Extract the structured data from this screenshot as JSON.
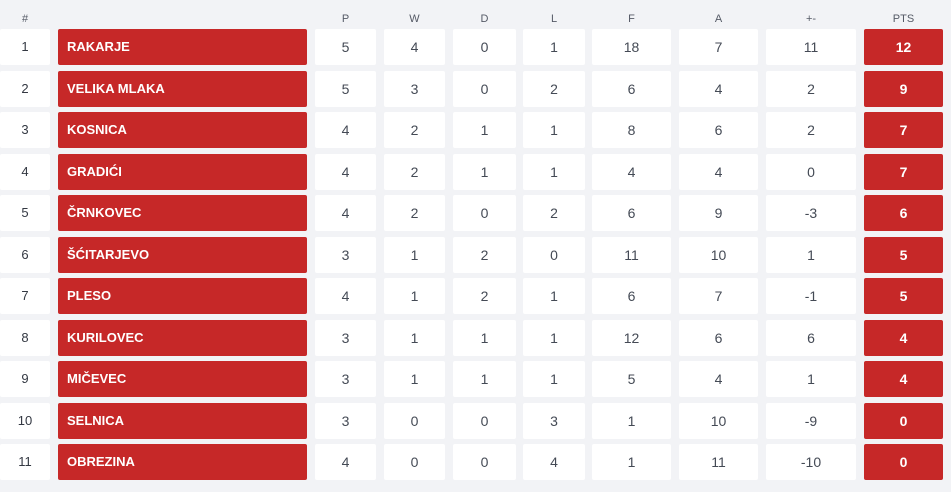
{
  "headers": {
    "pos": "#",
    "team": "",
    "p": "P",
    "w": "W",
    "d": "D",
    "l": "L",
    "f": "F",
    "a": "A",
    "gd": "+-",
    "pts": "PTS"
  },
  "colors": {
    "accent": "#c62828",
    "background": "#f2f3f6",
    "cell": "#ffffff"
  },
  "rows": [
    {
      "pos": "1",
      "team": "RAKARJE",
      "p": "5",
      "w": "4",
      "d": "0",
      "l": "1",
      "f": "18",
      "a": "7",
      "gd": "11",
      "pts": "12"
    },
    {
      "pos": "2",
      "team": "VELIKA MLAKA",
      "p": "5",
      "w": "3",
      "d": "0",
      "l": "2",
      "f": "6",
      "a": "4",
      "gd": "2",
      "pts": "9"
    },
    {
      "pos": "3",
      "team": "KOSNICA",
      "p": "4",
      "w": "2",
      "d": "1",
      "l": "1",
      "f": "8",
      "a": "6",
      "gd": "2",
      "pts": "7"
    },
    {
      "pos": "4",
      "team": "GRADIĆI",
      "p": "4",
      "w": "2",
      "d": "1",
      "l": "1",
      "f": "4",
      "a": "4",
      "gd": "0",
      "pts": "7"
    },
    {
      "pos": "5",
      "team": "ČRNKOVEC",
      "p": "4",
      "w": "2",
      "d": "0",
      "l": "2",
      "f": "6",
      "a": "9",
      "gd": "-3",
      "pts": "6"
    },
    {
      "pos": "6",
      "team": "ŠĆITARJEVO",
      "p": "3",
      "w": "1",
      "d": "2",
      "l": "0",
      "f": "11",
      "a": "10",
      "gd": "1",
      "pts": "5"
    },
    {
      "pos": "7",
      "team": "PLESO",
      "p": "4",
      "w": "1",
      "d": "2",
      "l": "1",
      "f": "6",
      "a": "7",
      "gd": "-1",
      "pts": "5"
    },
    {
      "pos": "8",
      "team": "KURILOVEC",
      "p": "3",
      "w": "1",
      "d": "1",
      "l": "1",
      "f": "12",
      "a": "6",
      "gd": "6",
      "pts": "4"
    },
    {
      "pos": "9",
      "team": "MIČEVEC",
      "p": "3",
      "w": "1",
      "d": "1",
      "l": "1",
      "f": "5",
      "a": "4",
      "gd": "1",
      "pts": "4"
    },
    {
      "pos": "10",
      "team": "SELNICA",
      "p": "3",
      "w": "0",
      "d": "0",
      "l": "3",
      "f": "1",
      "a": "10",
      "gd": "-9",
      "pts": "0"
    },
    {
      "pos": "11",
      "team": "OBREZINA",
      "p": "4",
      "w": "0",
      "d": "0",
      "l": "4",
      "f": "1",
      "a": "11",
      "gd": "-10",
      "pts": "0"
    }
  ]
}
